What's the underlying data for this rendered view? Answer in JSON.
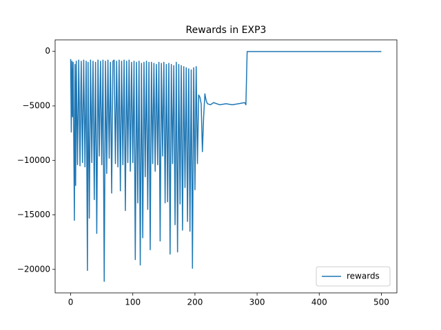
{
  "chart_data": {
    "type": "line",
    "title": "Rewards in EXP3",
    "x": [
      0,
      1,
      2,
      3,
      4,
      6,
      7,
      8,
      9,
      11,
      13,
      15,
      17,
      19,
      21,
      23,
      25,
      27,
      28,
      30,
      32,
      34,
      36,
      38,
      40,
      42,
      44,
      46,
      48,
      50,
      52,
      54,
      56,
      58,
      60,
      62,
      64,
      66,
      68,
      70,
      72,
      74,
      76,
      78,
      80,
      82,
      84,
      86,
      88,
      90,
      92,
      94,
      96,
      98,
      100,
      102,
      104,
      106,
      108,
      110,
      112,
      114,
      116,
      118,
      120,
      122,
      124,
      126,
      128,
      130,
      132,
      134,
      136,
      138,
      140,
      142,
      144,
      146,
      148,
      150,
      152,
      154,
      156,
      158,
      160,
      162,
      164,
      166,
      168,
      170,
      172,
      174,
      176,
      178,
      180,
      182,
      184,
      186,
      188,
      190,
      192,
      194,
      196,
      198,
      200,
      202,
      204,
      206,
      208,
      210,
      212,
      214,
      216,
      218,
      220,
      225,
      230,
      240,
      250,
      260,
      270,
      280,
      282,
      284,
      500
    ],
    "series": [
      {
        "name": "rewards",
        "color": "#1f77b4",
        "values": [
          -700,
          -7400,
          -900,
          -6000,
          -1000,
          -15500,
          -1200,
          -12300,
          -900,
          -10400,
          -800,
          -10500,
          -900,
          -10200,
          -800,
          -10600,
          -900,
          -20100,
          -1000,
          -15300,
          -800,
          -10200,
          -900,
          -13600,
          -1000,
          -16700,
          -800,
          -9600,
          -900,
          -10400,
          -800,
          -21100,
          -900,
          -11200,
          -800,
          -9800,
          -1000,
          -13000,
          -900,
          -800,
          -10300,
          -900,
          -10600,
          -800,
          -12800,
          -900,
          -10400,
          -800,
          -14600,
          -900,
          -10200,
          -800,
          -11000,
          -1000,
          -10200,
          -900,
          -19100,
          -1000,
          -13900,
          -900,
          -19600,
          -1100,
          -17100,
          -1000,
          -11500,
          -900,
          -14500,
          -1000,
          -18200,
          -1000,
          -10300,
          -1100,
          -11000,
          -1200,
          -10400,
          -1000,
          -17400,
          -1100,
          -9600,
          -1000,
          -13900,
          -1200,
          -13800,
          -1100,
          -18600,
          -1200,
          -10300,
          -1300,
          -15900,
          -1000,
          -18400,
          -1200,
          -14000,
          -1300,
          -16400,
          -1400,
          -12500,
          -1500,
          -15600,
          -1600,
          -16500,
          -1700,
          -19900,
          -1500,
          -12700,
          -1400,
          -10300,
          -4000,
          -4200,
          -4800,
          -9200,
          -6000,
          -3900,
          -4500,
          -4800,
          -4900,
          -4700,
          -4900,
          -4800,
          -4900,
          -4800,
          -4700,
          -4900,
          -20,
          -20
        ]
      }
    ],
    "xlim": [
      -25,
      525
    ],
    "ylim": [
      -22155,
      1055
    ],
    "xticks": [
      0,
      100,
      200,
      300,
      400,
      500
    ],
    "yticks": [
      {
        "value": -20000,
        "label": "−20000"
      },
      {
        "value": -15000,
        "label": "−15000"
      },
      {
        "value": -10000,
        "label": "−10000"
      },
      {
        "value": -5000,
        "label": "−5000"
      },
      0
    ],
    "legend": "lower right"
  }
}
